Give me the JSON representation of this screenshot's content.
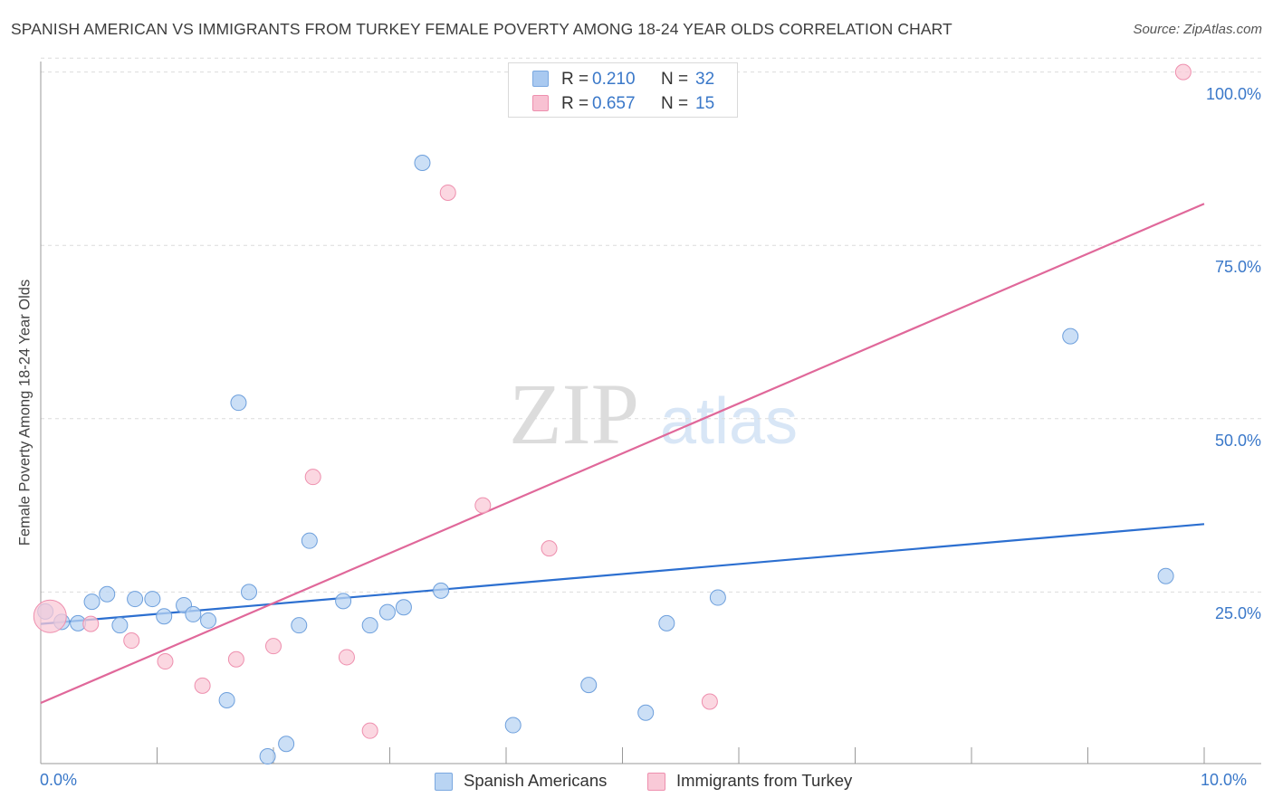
{
  "title": "SPANISH AMERICAN VS IMMIGRANTS FROM TURKEY FEMALE POVERTY AMONG 18-24 YEAR OLDS CORRELATION CHART",
  "source": "Source: ZipAtlas.com",
  "watermark": {
    "zip": "ZIP",
    "atlas": "atlas"
  },
  "legend": {
    "rows": [
      {
        "r_label": "R =",
        "r_value": "0.210",
        "n_label": "N =",
        "n_value": "32",
        "color": "#a9c9f0",
        "border": "#7aa8e0"
      },
      {
        "r_label": "R =",
        "r_value": "0.657",
        "n_label": "N =",
        "n_value": "15",
        "color": "#f8c1d2",
        "border": "#ee8fae"
      }
    ]
  },
  "bottom_legend": [
    {
      "label": "Spanish Americans",
      "color": "#b9d4f3",
      "border": "#7aa8e0"
    },
    {
      "label": "Immigrants from Turkey",
      "color": "#f9c9d7",
      "border": "#ee8fae"
    }
  ],
  "chart_data": {
    "type": "scatter",
    "title": "SPANISH AMERICAN VS IMMIGRANTS FROM TURKEY FEMALE POVERTY AMONG 18-24 YEAR OLDS CORRELATION CHART",
    "xlabel": "",
    "ylabel": "Female Poverty Among 18-24 Year Olds",
    "xlim": [
      0,
      10
    ],
    "ylim": [
      0,
      102
    ],
    "x_tick_labels": {
      "left": "0.0%",
      "right": "10.0%"
    },
    "y_ticks": [
      {
        "value": 25,
        "label": "25.0%"
      },
      {
        "value": 50,
        "label": "50.0%"
      },
      {
        "value": 75,
        "label": "75.0%"
      },
      {
        "value": 100,
        "label": "100.0%"
      }
    ],
    "grid": true,
    "series": [
      {
        "name": "Spanish Americans",
        "color": "#b9d4f3",
        "stroke": "#6d9fdc",
        "trend_color": "#2c6fd0",
        "trend": {
          "x0": 0,
          "y0": 20.4,
          "x1": 10,
          "y1": 34.8
        },
        "points": [
          {
            "x": 0.04,
            "y": 22.2
          },
          {
            "x": 0.18,
            "y": 20.7
          },
          {
            "x": 0.32,
            "y": 20.5
          },
          {
            "x": 0.44,
            "y": 23.6
          },
          {
            "x": 0.57,
            "y": 24.7
          },
          {
            "x": 0.68,
            "y": 20.2
          },
          {
            "x": 0.81,
            "y": 24.0
          },
          {
            "x": 0.96,
            "y": 24.0
          },
          {
            "x": 1.06,
            "y": 21.5
          },
          {
            "x": 1.23,
            "y": 23.1
          },
          {
            "x": 1.31,
            "y": 21.8
          },
          {
            "x": 1.44,
            "y": 20.9
          },
          {
            "x": 1.6,
            "y": 9.4
          },
          {
            "x": 1.7,
            "y": 52.3
          },
          {
            "x": 1.79,
            "y": 25.0
          },
          {
            "x": 1.95,
            "y": 1.3
          },
          {
            "x": 2.11,
            "y": 3.1
          },
          {
            "x": 2.22,
            "y": 20.2
          },
          {
            "x": 2.31,
            "y": 32.4
          },
          {
            "x": 2.6,
            "y": 23.7
          },
          {
            "x": 2.83,
            "y": 20.2
          },
          {
            "x": 2.98,
            "y": 22.1
          },
          {
            "x": 3.12,
            "y": 22.8
          },
          {
            "x": 3.28,
            "y": 86.9
          },
          {
            "x": 3.44,
            "y": 25.2
          },
          {
            "x": 4.06,
            "y": 5.8
          },
          {
            "x": 4.71,
            "y": 11.6
          },
          {
            "x": 5.2,
            "y": 7.6
          },
          {
            "x": 5.38,
            "y": 20.5
          },
          {
            "x": 5.82,
            "y": 24.2
          },
          {
            "x": 8.85,
            "y": 61.9
          },
          {
            "x": 9.67,
            "y": 27.3
          }
        ]
      },
      {
        "name": "Immigrants from Turkey",
        "color": "#f9c9d7",
        "stroke": "#ee8fae",
        "trend_color": "#e0689a",
        "trend": {
          "x0": 0,
          "y0": 9.0,
          "x1": 10,
          "y1": 81.0
        },
        "points": [
          {
            "x": 0.08,
            "y": 21.5,
            "big": true
          },
          {
            "x": 0.43,
            "y": 20.4
          },
          {
            "x": 0.78,
            "y": 18.0
          },
          {
            "x": 1.07,
            "y": 15.0
          },
          {
            "x": 1.39,
            "y": 11.5
          },
          {
            "x": 1.68,
            "y": 15.3
          },
          {
            "x": 2.0,
            "y": 17.2
          },
          {
            "x": 2.34,
            "y": 41.6
          },
          {
            "x": 2.63,
            "y": 15.6
          },
          {
            "x": 2.83,
            "y": 5.0
          },
          {
            "x": 3.5,
            "y": 82.6
          },
          {
            "x": 3.8,
            "y": 37.5
          },
          {
            "x": 4.37,
            "y": 31.3
          },
          {
            "x": 5.75,
            "y": 9.2
          },
          {
            "x": 9.82,
            "y": 100.0
          }
        ]
      }
    ]
  }
}
